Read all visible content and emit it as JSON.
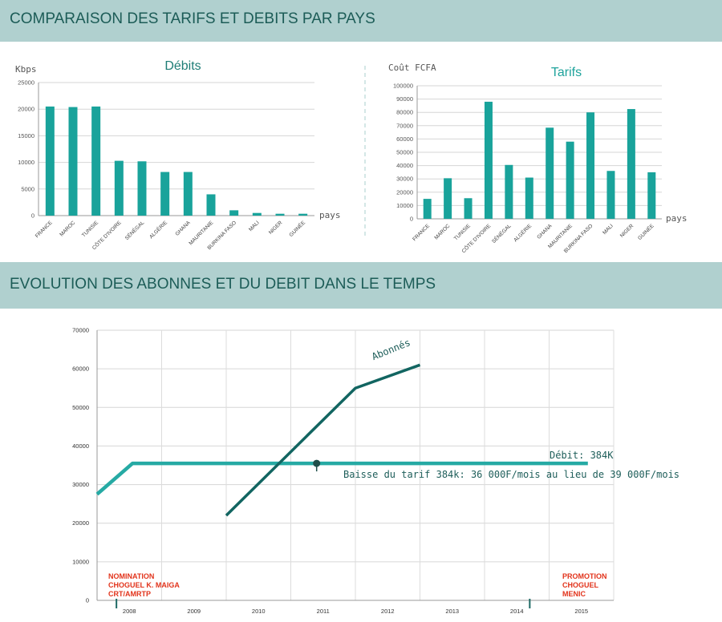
{
  "sections": {
    "top_title": "COMPARAISON DES TARIFS ET DEBITS PAR PAYS",
    "bottom_title": "EVOLUTION DES ABONNES ET DU DEBIT DANS LE TEMPS"
  },
  "colors": {
    "banner": "#b0d0cf",
    "banner_text": "#1c5c57",
    "bar": "#19a39b",
    "subscribers_line": "#126561",
    "debit_line": "#26aaa4",
    "milestone_text": "#e2331b"
  },
  "chart_data": [
    {
      "type": "bar",
      "title": "Débits",
      "ylabel": "Kbps",
      "xlabel": "pays",
      "ylim": [
        0,
        25000
      ],
      "yticks": [
        0,
        5000,
        10000,
        15000,
        20000,
        25000
      ],
      "categories": [
        "FRANCE",
        "MAROC",
        "TUNISIE",
        "CÔTE D'IVOIRE",
        "SÉNÉGAL",
        "ALGÉRIE",
        "GHANA",
        "MAURITANIE",
        "BURKINA FASO",
        "MALI",
        "NIGER",
        "GUINÉE"
      ],
      "values": [
        20500,
        20400,
        20500,
        10300,
        10200,
        8200,
        8200,
        4000,
        1000,
        500,
        350,
        350
      ],
      "grid": true
    },
    {
      "type": "bar",
      "title": "Tarifs",
      "ylabel": "Coût FCFA",
      "xlabel": "pays",
      "ylim": [
        0,
        100000
      ],
      "yticks": [
        0,
        10000,
        20000,
        30000,
        40000,
        50000,
        60000,
        70000,
        80000,
        90000,
        100000
      ],
      "categories": [
        "FRANCE",
        "MAROC",
        "TUNISIE",
        "CÔTE D'IVOIRE",
        "SÉNÉGAL",
        "ALGÉRIE",
        "GHANA",
        "MAURITANIE",
        "BURKINA FASO",
        "MALI",
        "NIGER",
        "GUINÉE"
      ],
      "values": [
        15000,
        30500,
        15500,
        88000,
        40500,
        31000,
        68500,
        58000,
        80000,
        36000,
        82500,
        35000
      ],
      "grid": true
    },
    {
      "type": "line",
      "title": "",
      "ylim": [
        0,
        70000
      ],
      "yticks": [
        0,
        10000,
        20000,
        30000,
        40000,
        50000,
        60000,
        70000
      ],
      "x": [
        "2008",
        "2009",
        "2010",
        "2011",
        "2012",
        "2013",
        "2014",
        "2015"
      ],
      "series": [
        {
          "name": "Abonnés",
          "points": [
            [
              2010.0,
              22000
            ],
            [
              2012.0,
              55000
            ],
            [
              2013.0,
              61000
            ]
          ]
        },
        {
          "name": "Débit: 384K",
          "points": [
            [
              2008.0,
              27500
            ],
            [
              2008.55,
              35500
            ],
            [
              2015.6,
              35500
            ]
          ]
        }
      ],
      "annotations": {
        "tariff_note": "Baisse du tarif 384k: 36 000F/mois au lieu de 39 000F/mois",
        "tariff_point": [
          2011.4,
          35500
        ],
        "milestones": [
          {
            "year": 2008.3,
            "label_lines": [
              "NOMINATION",
              "CHOGUEL K. MAIGA",
              "CRT/AMRTP"
            ]
          },
          {
            "year": 2014.7,
            "label_lines": [
              "PROMOTION",
              "CHOGUEL",
              "MENIC"
            ]
          }
        ]
      },
      "grid": true
    }
  ]
}
